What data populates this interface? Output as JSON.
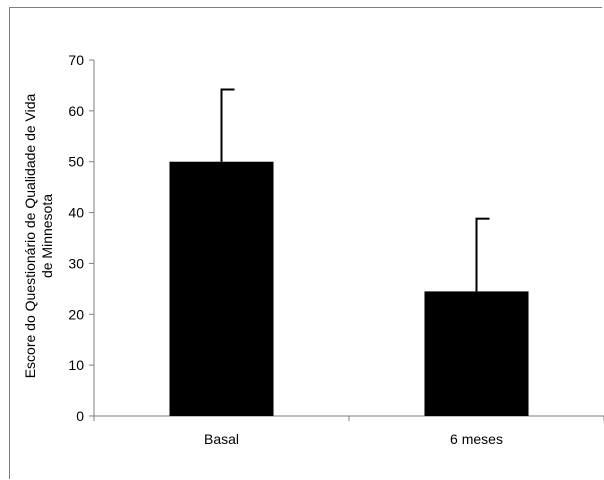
{
  "chart_data": {
    "type": "bar",
    "categories": [
      "Basal",
      "6 meses"
    ],
    "values": [
      50,
      24.5
    ],
    "error_upper": [
      64.2,
      38.8
    ],
    "ylim": [
      0,
      70
    ],
    "yticks": [
      "0",
      "10",
      "20",
      "30",
      "40",
      "50",
      "60",
      "70"
    ],
    "ylabel_lines": [
      "Escore do Questionário de Qualidade de Vida",
      "de Minnesota"
    ],
    "xlabel": "",
    "title": "",
    "grid": false,
    "legend": "none",
    "bar_color": "#000000"
  }
}
